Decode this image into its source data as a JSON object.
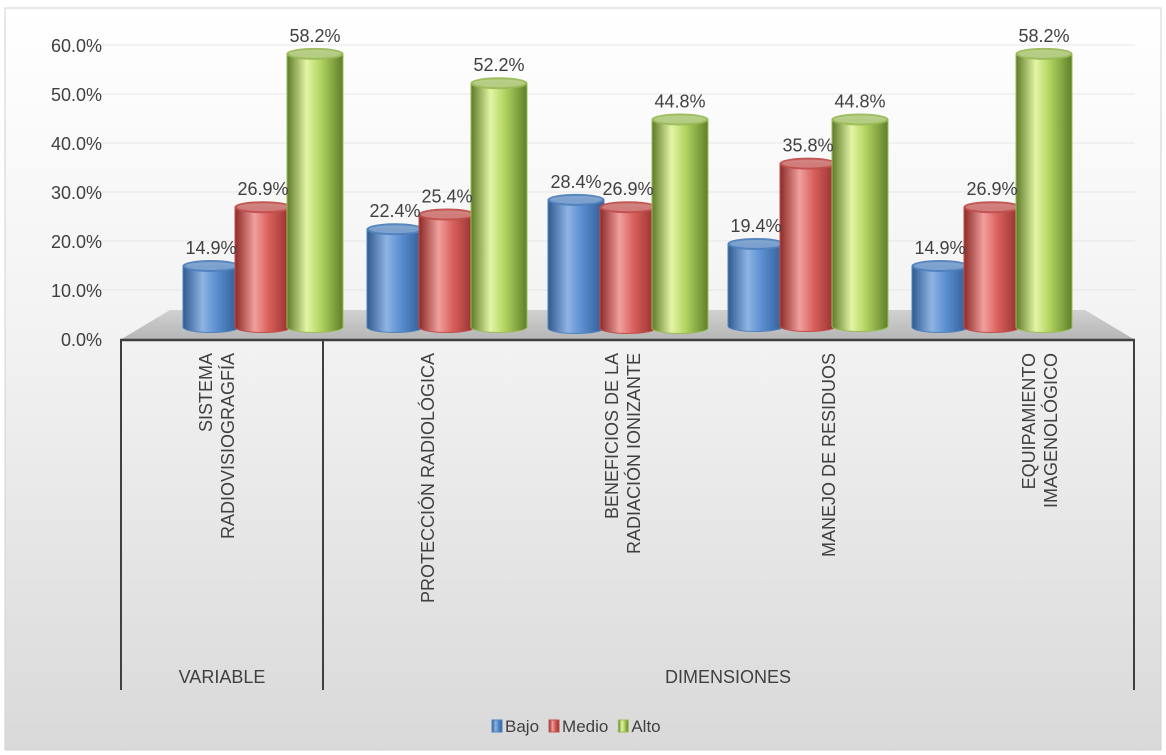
{
  "chart_data": {
    "type": "bar",
    "title": "",
    "xlabel": "",
    "ylabel": "",
    "ylim": [
      0,
      60
    ],
    "y_ticks": [
      "0.0%",
      "10.0%",
      "20.0%",
      "30.0%",
      "40.0%",
      "50.0%",
      "60.0%"
    ],
    "categories": [
      {
        "line1": "SISTEMA",
        "line2": "RADIOVISIOGRAGFÍA",
        "group": 0
      },
      {
        "line1": "PROTECCIÓN RADIOLÓGICA",
        "line2": "",
        "group": 1
      },
      {
        "line1": "BENEFICIOS DE LA",
        "line2": "RADIACIÓN IONIZANTE",
        "group": 1
      },
      {
        "line1": "MANEJO DE RESIDUOS",
        "line2": "",
        "group": 1
      },
      {
        "line1": "EQUIPAMIENTO",
        "line2": "IMAGENOLÓGICO",
        "group": 1
      }
    ],
    "groups": [
      "VARIABLE",
      "DIMENSIONES"
    ],
    "series": [
      {
        "name": "Bajo",
        "color": "#4f81bd",
        "values": [
          14.9,
          22.4,
          28.4,
          19.4,
          14.9
        ],
        "labels": [
          "14.9%",
          "22.4%",
          "28.4%",
          "19.4%",
          "14.9%"
        ]
      },
      {
        "name": "Medio",
        "color": "#c0504d",
        "values": [
          26.9,
          25.4,
          26.9,
          35.8,
          26.9
        ],
        "labels": [
          "26.9%",
          "25.4%",
          "26.9%",
          "35.8%",
          "26.9%"
        ]
      },
      {
        "name": "Alto",
        "color": "#9bbb59",
        "values": [
          58.2,
          52.2,
          44.8,
          44.8,
          58.2
        ],
        "labels": [
          "58.2%",
          "52.2%",
          "44.8%",
          "44.8%",
          "58.2%"
        ]
      }
    ],
    "grid": true,
    "legend": "bottom-center"
  }
}
